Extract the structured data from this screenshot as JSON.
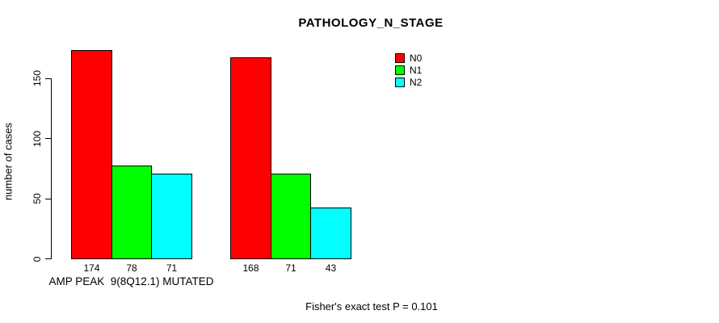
{
  "title": "PATHOLOGY_N_STAGE",
  "footer": "Fisher's exact test P = 0.101",
  "chart_data": {
    "type": "bar",
    "title": "PATHOLOGY_N_STAGE",
    "xlabel": "",
    "ylabel": "number of cases",
    "ylim": [
      0,
      150
    ],
    "yticks": [
      0,
      50,
      100,
      150
    ],
    "grid": false,
    "legend_position": "top-right",
    "background_color": "#FFFFFF",
    "bar_border_color": "#000000",
    "value_labels_shown": true,
    "series": [
      {
        "name": "N0",
        "color": "#FF0000"
      },
      {
        "name": "N1",
        "color": "#00FF00"
      },
      {
        "name": "N2",
        "color": "#00FFFF"
      }
    ],
    "groups": [
      {
        "label": "AMP PEAK  9(8Q12.1) MUTATED",
        "values": [
          174,
          78,
          71
        ]
      },
      {
        "label": "",
        "values": [
          168,
          71,
          43
        ]
      }
    ],
    "annotation": "Fisher's exact test P = 0.101"
  }
}
